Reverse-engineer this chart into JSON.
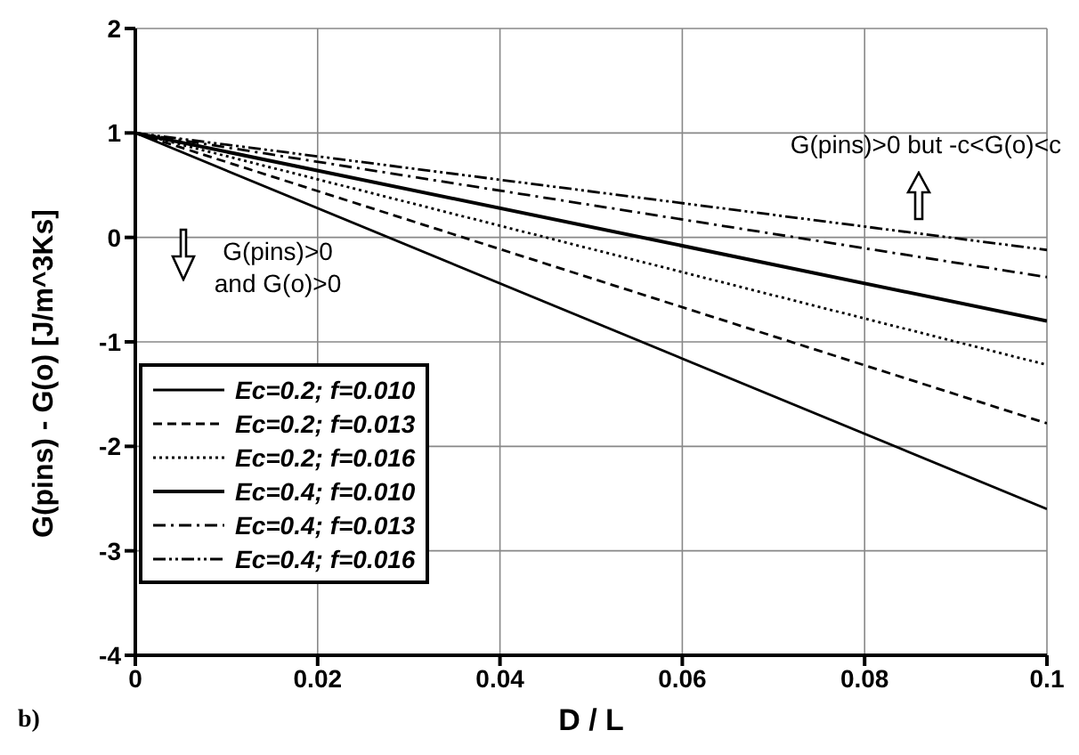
{
  "chart_data": {
    "type": "line",
    "xlabel": "D / L",
    "ylabel": "G(pins) - G(o) [J/m^3Ks]",
    "x": [
      0,
      0.1
    ],
    "series": [
      {
        "name": "Ec=0.2; f=0.010",
        "color": "#000000",
        "line_style": "solid",
        "values": [
          1,
          -2.6
        ]
      },
      {
        "name": "Ec=0.2; f=0.013",
        "color": "#000000",
        "line_style": "dashed",
        "values": [
          1,
          -1.78
        ]
      },
      {
        "name": "Ec=0.2; f=0.016",
        "color": "#000000",
        "line_style": "dotted",
        "values": [
          1,
          -1.22
        ]
      },
      {
        "name": "Ec=0.4; f=0.010",
        "color": "#000000",
        "line_style": "solid",
        "values": [
          1,
          -0.8
        ]
      },
      {
        "name": "Ec=0.4; f=0.013",
        "color": "#000000",
        "line_style": "dashdot",
        "values": [
          1,
          -0.38
        ]
      },
      {
        "name": "Ec=0.4; f=0.016",
        "color": "#000000",
        "line_style": "dashdotdot",
        "values": [
          1,
          -0.12
        ]
      }
    ],
    "xlim": [
      0,
      0.1
    ],
    "xticks": [
      0,
      0.02,
      0.04,
      0.06,
      0.08,
      0.1
    ],
    "ylim": [
      -4,
      2
    ],
    "yticks": [
      -4,
      -3,
      -2,
      -1,
      0,
      1,
      2
    ],
    "grid": true,
    "legend": "bottom left",
    "marker": "none",
    "annotations": [
      "G(pins)>0 but -c<G(o)<c",
      "G(pins)>0 and G(o)>0",
      "b)"
    ]
  }
}
